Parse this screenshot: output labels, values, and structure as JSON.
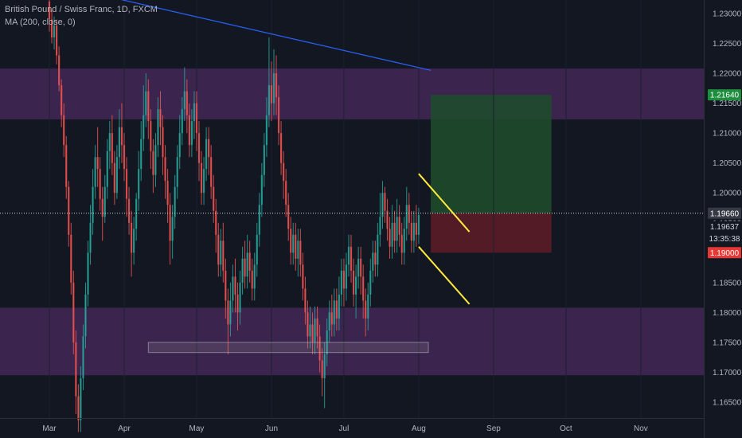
{
  "legend": {
    "title": "British Pound / Swiss Franc, 1D, FXCM",
    "indicator": "MA (200, close, 0)"
  },
  "colors": {
    "background": "#131722",
    "up": "#26a69a",
    "down": "#ef5350",
    "zone": "#4a2a5e",
    "target": "#1f4d2c",
    "stop": "#5a1c26",
    "trendline": "#ffeb3b",
    "ma": "#2962ff"
  },
  "chart_data": {
    "type": "candlestick",
    "symbol": "GBP/CHF",
    "timeframe": "1D",
    "ylim": [
      1.1615,
      1.2335
    ],
    "yticks": [
      "1.23000",
      "1.22500",
      "1.22000",
      "1.21500",
      "1.21000",
      "1.20500",
      "1.20000",
      "1.19500",
      "1.19000",
      "1.18500",
      "1.18000",
      "1.17500",
      "1.17000",
      "1.16500"
    ],
    "xticks": [
      {
        "label": "Mar",
        "day": 0
      },
      {
        "label": "Apr",
        "day": 31
      },
      {
        "label": "May",
        "day": 61
      },
      {
        "label": "Jun",
        "day": 92
      },
      {
        "label": "Jul",
        "day": 122
      },
      {
        "label": "Aug",
        "day": 153
      },
      {
        "label": "Sep",
        "day": 184
      },
      {
        "label": "Oct",
        "day": 214
      },
      {
        "label": "Nov",
        "day": 245
      }
    ],
    "last_day": 178,
    "candles": [
      [
        1.232,
        1.229,
        1.233,
        1.227
      ],
      [
        1.229,
        1.226,
        1.2305,
        1.225
      ],
      [
        1.226,
        1.228,
        1.2295,
        1.224
      ],
      [
        1.228,
        1.223,
        1.229,
        1.2215
      ],
      [
        1.223,
        1.218,
        1.2245,
        1.217
      ],
      [
        1.218,
        1.213,
        1.219,
        1.211
      ],
      [
        1.213,
        1.208,
        1.215,
        1.206
      ],
      [
        1.208,
        1.201,
        1.2095,
        1.199
      ],
      [
        1.201,
        1.193,
        1.202,
        1.191
      ],
      [
        1.193,
        1.185,
        1.195,
        1.183
      ],
      [
        1.185,
        1.175,
        1.187,
        1.173
      ],
      [
        1.175,
        1.166,
        1.177,
        1.163
      ],
      [
        1.166,
        1.162,
        1.168,
        1.16
      ],
      [
        1.162,
        1.169,
        1.171,
        1.16
      ],
      [
        1.169,
        1.176,
        1.178,
        1.167
      ],
      [
        1.176,
        1.183,
        1.185,
        1.174
      ],
      [
        1.183,
        1.19,
        1.192,
        1.181
      ],
      [
        1.19,
        1.195,
        1.198,
        1.188
      ],
      [
        1.195,
        1.201,
        1.204,
        1.193
      ],
      [
        1.201,
        1.206,
        1.208,
        1.199
      ],
      [
        1.206,
        1.204,
        1.211,
        1.201
      ],
      [
        1.204,
        1.199,
        1.206,
        1.197
      ],
      [
        1.199,
        1.196,
        1.201,
        1.192
      ],
      [
        1.196,
        1.201,
        1.203,
        1.195
      ],
      [
        1.201,
        1.207,
        1.209,
        1.199
      ],
      [
        1.207,
        1.21,
        1.212,
        1.204
      ],
      [
        1.21,
        1.205,
        1.213,
        1.203
      ],
      [
        1.205,
        1.2,
        1.207,
        1.198
      ],
      [
        1.2,
        1.206,
        1.208,
        1.199
      ],
      [
        1.206,
        1.211,
        1.214,
        1.204
      ],
      [
        1.211,
        1.208,
        1.215,
        1.205
      ],
      [
        1.208,
        1.204,
        1.21,
        1.202
      ],
      [
        1.204,
        1.199,
        1.206,
        1.196
      ],
      [
        1.199,
        1.195,
        1.201,
        1.193
      ],
      [
        1.195,
        1.19,
        1.197,
        1.186
      ],
      [
        1.19,
        1.194,
        1.196,
        1.188
      ],
      [
        1.194,
        1.199,
        1.2,
        1.192
      ],
      [
        1.199,
        1.204,
        1.207,
        1.197
      ],
      [
        1.204,
        1.209,
        1.212,
        1.202
      ],
      [
        1.209,
        1.213,
        1.218,
        1.207
      ],
      [
        1.213,
        1.217,
        1.22,
        1.211
      ],
      [
        1.217,
        1.212,
        1.219,
        1.209
      ],
      [
        1.212,
        1.207,
        1.214,
        1.204
      ],
      [
        1.207,
        1.203,
        1.209,
        1.2
      ],
      [
        1.203,
        1.208,
        1.21,
        1.201
      ],
      [
        1.208,
        1.214,
        1.216,
        1.206
      ],
      [
        1.214,
        1.211,
        1.217,
        1.208
      ],
      [
        1.211,
        1.206,
        1.213,
        1.203
      ],
      [
        1.206,
        1.202,
        1.208,
        1.199
      ],
      [
        1.202,
        1.198,
        1.204,
        1.195
      ],
      [
        1.198,
        1.192,
        1.2,
        1.188
      ],
      [
        1.192,
        1.196,
        1.198,
        1.189
      ],
      [
        1.196,
        1.201,
        1.203,
        1.194
      ],
      [
        1.201,
        1.206,
        1.208,
        1.199
      ],
      [
        1.206,
        1.21,
        1.213,
        1.204
      ],
      [
        1.21,
        1.214,
        1.216,
        1.208
      ],
      [
        1.214,
        1.217,
        1.221,
        1.212
      ],
      [
        1.217,
        1.213,
        1.219,
        1.21
      ],
      [
        1.213,
        1.208,
        1.215,
        1.206
      ],
      [
        1.208,
        1.212,
        1.214,
        1.206
      ],
      [
        1.212,
        1.215,
        1.217,
        1.209
      ],
      [
        1.215,
        1.21,
        1.217,
        1.207
      ],
      [
        1.21,
        1.205,
        1.212,
        1.202
      ],
      [
        1.205,
        1.2,
        1.207,
        1.198
      ],
      [
        1.2,
        1.204,
        1.206,
        1.198
      ],
      [
        1.204,
        1.209,
        1.211,
        1.202
      ],
      [
        1.209,
        1.206,
        1.211,
        1.203
      ],
      [
        1.206,
        1.201,
        1.208,
        1.199
      ],
      [
        1.201,
        1.197,
        1.203,
        1.195
      ],
      [
        1.197,
        1.193,
        1.199,
        1.19
      ],
      [
        1.193,
        1.188,
        1.195,
        1.186
      ],
      [
        1.188,
        1.192,
        1.194,
        1.186
      ],
      [
        1.192,
        1.187,
        1.195,
        1.185
      ],
      [
        1.187,
        1.182,
        1.189,
        1.179
      ],
      [
        1.182,
        1.178,
        1.184,
        1.173
      ],
      [
        1.178,
        1.182,
        1.185,
        1.176
      ],
      [
        1.182,
        1.186,
        1.188,
        1.18
      ],
      [
        1.186,
        1.183,
        1.189,
        1.18
      ],
      [
        1.183,
        1.18,
        1.185,
        1.177
      ],
      [
        1.18,
        1.185,
        1.187,
        1.178
      ],
      [
        1.185,
        1.189,
        1.191,
        1.183
      ],
      [
        1.189,
        1.186,
        1.192,
        1.184
      ],
      [
        1.186,
        1.19,
        1.193,
        1.184
      ],
      [
        1.19,
        1.187,
        1.192,
        1.185
      ],
      [
        1.187,
        1.184,
        1.189,
        1.182
      ],
      [
        1.184,
        1.188,
        1.19,
        1.182
      ],
      [
        1.188,
        1.193,
        1.195,
        1.186
      ],
      [
        1.193,
        1.198,
        1.2,
        1.191
      ],
      [
        1.198,
        1.203,
        1.205,
        1.196
      ],
      [
        1.203,
        1.208,
        1.21,
        1.201
      ],
      [
        1.208,
        1.213,
        1.216,
        1.206
      ],
      [
        1.213,
        1.218,
        1.226,
        1.211
      ],
      [
        1.218,
        1.215,
        1.222,
        1.212
      ],
      [
        1.215,
        1.22,
        1.224,
        1.213
      ],
      [
        1.22,
        1.216,
        1.223,
        1.213
      ],
      [
        1.216,
        1.21,
        1.218,
        1.208
      ],
      [
        1.21,
        1.205,
        1.212,
        1.203
      ],
      [
        1.205,
        1.202,
        1.207,
        1.199
      ],
      [
        1.202,
        1.198,
        1.204,
        1.196
      ],
      [
        1.198,
        1.194,
        1.2,
        1.192
      ],
      [
        1.194,
        1.19,
        1.196,
        1.188
      ],
      [
        1.19,
        1.193,
        1.195,
        1.188
      ],
      [
        1.193,
        1.189,
        1.195,
        1.187
      ],
      [
        1.189,
        1.192,
        1.194,
        1.186
      ],
      [
        1.192,
        1.188,
        1.194,
        1.186
      ],
      [
        1.188,
        1.184,
        1.19,
        1.182
      ],
      [
        1.184,
        1.18,
        1.186,
        1.178
      ],
      [
        1.18,
        1.176,
        1.182,
        1.174
      ],
      [
        1.176,
        1.178,
        1.181,
        1.174
      ],
      [
        1.178,
        1.175,
        1.18,
        1.173
      ],
      [
        1.175,
        1.179,
        1.181,
        1.173
      ],
      [
        1.179,
        1.176,
        1.181,
        1.174
      ],
      [
        1.176,
        1.172,
        1.178,
        1.17
      ],
      [
        1.172,
        1.169,
        1.174,
        1.166
      ],
      [
        1.169,
        1.173,
        1.175,
        1.164
      ],
      [
        1.173,
        1.177,
        1.179,
        1.171
      ],
      [
        1.177,
        1.18,
        1.182,
        1.175
      ],
      [
        1.18,
        1.178,
        1.183,
        1.176
      ],
      [
        1.178,
        1.182,
        1.184,
        1.176
      ],
      [
        1.182,
        1.179,
        1.184,
        1.177
      ],
      [
        1.179,
        1.183,
        1.186,
        1.177
      ],
      [
        1.183,
        1.187,
        1.189,
        1.181
      ],
      [
        1.187,
        1.184,
        1.189,
        1.181
      ],
      [
        1.184,
        1.188,
        1.19,
        1.182
      ],
      [
        1.188,
        1.191,
        1.193,
        1.186
      ],
      [
        1.191,
        1.187,
        1.193,
        1.185
      ],
      [
        1.187,
        1.183,
        1.189,
        1.181
      ],
      [
        1.183,
        1.186,
        1.188,
        1.179
      ],
      [
        1.186,
        1.189,
        1.191,
        1.184
      ],
      [
        1.189,
        1.186,
        1.191,
        1.183
      ],
      [
        1.186,
        1.182,
        1.188,
        1.179
      ],
      [
        1.182,
        1.179,
        1.184,
        1.176
      ],
      [
        1.179,
        1.183,
        1.185,
        1.177
      ],
      [
        1.183,
        1.187,
        1.189,
        1.181
      ],
      [
        1.187,
        1.19,
        1.192,
        1.185
      ],
      [
        1.19,
        1.188,
        1.192,
        1.186
      ],
      [
        1.188,
        1.193,
        1.195,
        1.186
      ],
      [
        1.193,
        1.196,
        1.2,
        1.191
      ],
      [
        1.196,
        1.2,
        1.202,
        1.194
      ],
      [
        1.2,
        1.197,
        1.201,
        1.195
      ],
      [
        1.197,
        1.194,
        1.199,
        1.192
      ],
      [
        1.194,
        1.191,
        1.196,
        1.189
      ],
      [
        1.191,
        1.195,
        1.198,
        1.189
      ],
      [
        1.195,
        1.192,
        1.197,
        1.19
      ],
      [
        1.192,
        1.196,
        1.199,
        1.19
      ],
      [
        1.196,
        1.193,
        1.198,
        1.191
      ],
      [
        1.193,
        1.19,
        1.195,
        1.188
      ],
      [
        1.19,
        1.194,
        1.196,
        1.188
      ],
      [
        1.194,
        1.198,
        1.201,
        1.192
      ],
      [
        1.198,
        1.195,
        1.2,
        1.193
      ],
      [
        1.195,
        1.192,
        1.197,
        1.19
      ],
      [
        1.192,
        1.195,
        1.197,
        1.19
      ],
      [
        1.195,
        1.193,
        1.198,
        1.191
      ],
      [
        1.193,
        1.1963,
        1.1975,
        1.1915
      ]
    ],
    "ma_line": {
      "from": [
        -10,
        1.236
      ],
      "to": [
        158,
        1.2205
      ]
    },
    "zones": [
      {
        "top": 1.2208,
        "bottom": 1.2123
      },
      {
        "top": 1.1808,
        "bottom": 1.1695
      }
    ],
    "base_box": {
      "day_from": 41,
      "day_to": 157,
      "top": 1.175,
      "bottom": 1.1733
    },
    "channel": [
      {
        "from": [
          153,
          1.2032
        ],
        "to": [
          174,
          1.1935
        ]
      },
      {
        "from": [
          153,
          1.191
        ],
        "to": [
          174,
          1.1814
        ]
      }
    ],
    "position": {
      "day_from": 158,
      "day_to": 208,
      "target": 1.2164,
      "entry": 1.1966,
      "stop": 1.19
    },
    "labels": {
      "target": "1.21640",
      "crosshair": "1.19660",
      "last": "1.19637",
      "countdown": "13:35:38",
      "stop": "1.19000"
    }
  }
}
